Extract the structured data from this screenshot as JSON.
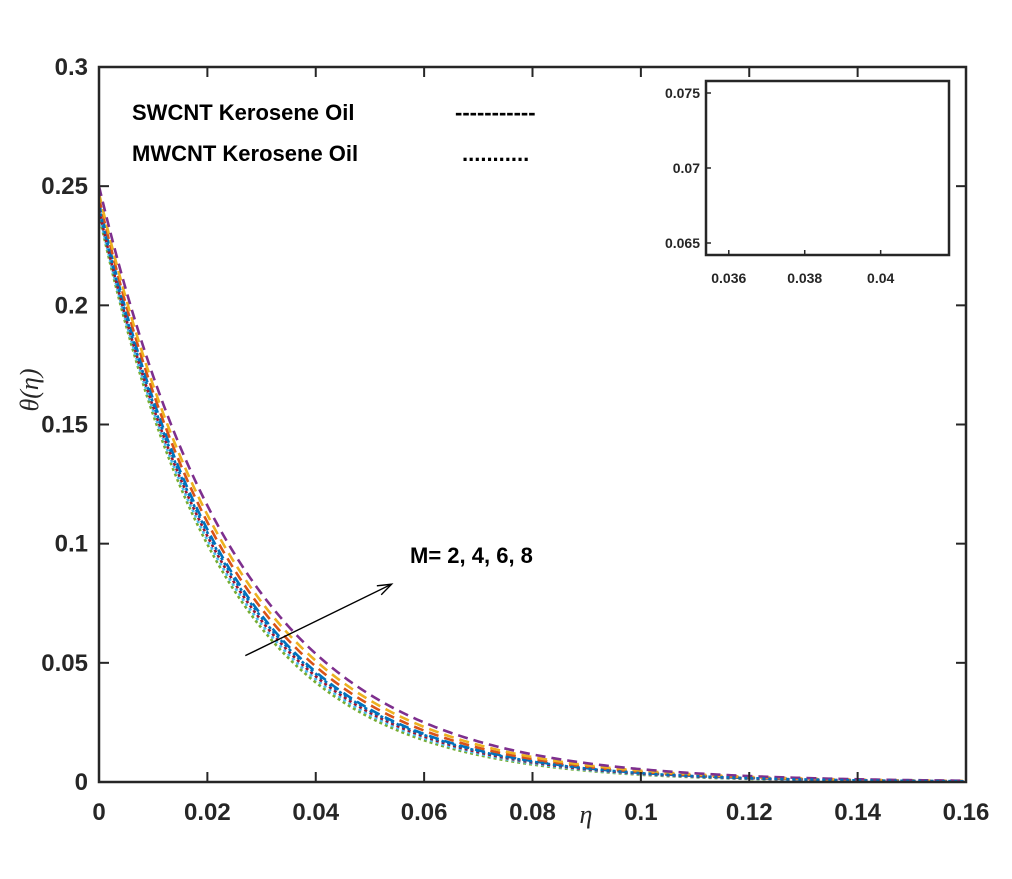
{
  "chart_data": {
    "type": "line",
    "title": "",
    "xlabel": "η",
    "ylabel": "θ(η)",
    "xlim": [
      0,
      0.16
    ],
    "ylim": [
      0,
      0.3
    ],
    "xticks": [
      "0",
      "0.02",
      "0.04",
      "0.06",
      "0.08",
      "0.1",
      "0.12",
      "0.14",
      "0.16"
    ],
    "yticks": [
      "0",
      "0.05",
      "0.1",
      "0.15",
      "0.2",
      "0.25",
      "0.3"
    ],
    "legend": [
      {
        "label": "SWCNT Kerosene Oil",
        "sample": "-----------",
        "style": "dashed"
      },
      {
        "label": "MWCNT Kerosene Oil",
        "sample": "...........",
        "style": "dotted"
      }
    ],
    "annotation": {
      "text": "M= 2, 4, 6, 8",
      "arrow_from": [
        0.027,
        0.053
      ],
      "arrow_to": [
        0.054,
        0.083
      ]
    },
    "series": [
      {
        "name": "SWCNT M=2",
        "style": "dashed",
        "color": "#0072BD",
        "theta0": 0.243,
        "decay": 41.5
      },
      {
        "name": "SWCNT M=4",
        "style": "dashed",
        "color": "#D95319",
        "theta0": 0.245,
        "decay": 40.5
      },
      {
        "name": "SWCNT M=6",
        "style": "dashed",
        "color": "#EDB120",
        "theta0": 0.247,
        "decay": 39.5
      },
      {
        "name": "SWCNT M=8",
        "style": "dashed",
        "color": "#7E2F8E",
        "theta0": 0.25,
        "decay": 38.4
      },
      {
        "name": "MWCNT M=2",
        "style": "dotted",
        "color": "#77AC30",
        "theta0": 0.238,
        "decay": 43.5
      },
      {
        "name": "MWCNT M=4",
        "style": "dotted",
        "color": "#4DBEEE",
        "theta0": 0.239,
        "decay": 42.8
      },
      {
        "name": "MWCNT M=6",
        "style": "dotted",
        "color": "#A2142F",
        "theta0": 0.24,
        "decay": 42.2
      },
      {
        "name": "MWCNT M=8",
        "style": "dotted",
        "color": "#0072BD",
        "theta0": 0.241,
        "decay": 41.7
      }
    ],
    "inset": {
      "xlim": [
        0.0354,
        0.0418
      ],
      "ylim": [
        0.0642,
        0.0758
      ],
      "xticks": [
        "0.036",
        "0.038",
        "0.04"
      ],
      "yticks": [
        "0.065",
        "0.07",
        "0.075"
      ]
    }
  }
}
